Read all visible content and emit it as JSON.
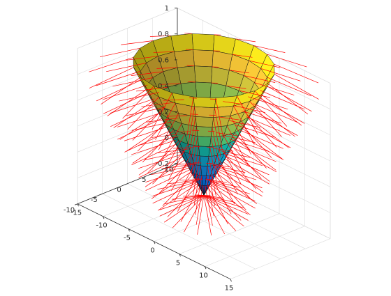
{
  "chart_data": {
    "type": "surface",
    "title": "",
    "xlabel": "",
    "ylabel": "",
    "zlabel": "",
    "surface": "cone with surface normals (surfnorm)",
    "radial_range": [
      0,
      10
    ],
    "angular_segments": 20,
    "radial_rings": 10,
    "xlim": [
      -15,
      15
    ],
    "ylim": [
      -10,
      10
    ],
    "zlim": [
      -0.2,
      1
    ],
    "x_ticks": [
      "-15",
      "-10",
      "-5",
      "0",
      "5",
      "10",
      "15"
    ],
    "y_ticks": [
      "-10",
      "-5",
      "0",
      "5",
      "10"
    ],
    "z_ticks": [
      "-0.2",
      "0",
      "0.2",
      "0.4",
      "0.6",
      "0.8",
      "1"
    ],
    "grid": true,
    "colormap": "parula",
    "normal_color": "#ff0000",
    "edge_color": "#111111"
  }
}
